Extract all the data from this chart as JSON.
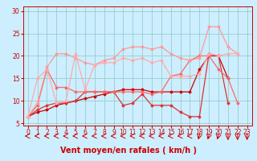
{
  "background_color": "#cceeff",
  "grid_color": "#99cccc",
  "xlabel": "Vent moyen/en rafales ( km/h )",
  "xlabel_color": "#cc0000",
  "xlabel_fontsize": 7,
  "tick_color": "#cc0000",
  "tick_fontsize": 5.5,
  "yticks": [
    5,
    10,
    15,
    20,
    25,
    30
  ],
  "xlim": [
    -0.5,
    23.5
  ],
  "ylim": [
    4.5,
    31
  ],
  "lines": [
    {
      "x": [
        0,
        1,
        2,
        3,
        4,
        5,
        6,
        7,
        8,
        9,
        10,
        11,
        12,
        13,
        14,
        15,
        16,
        17,
        18,
        19,
        20,
        21
      ],
      "y": [
        6.5,
        7.5,
        8.0,
        9.0,
        9.5,
        10.0,
        10.5,
        11.0,
        11.5,
        12.0,
        12.5,
        12.5,
        12.5,
        12.0,
        12.0,
        12.0,
        12.0,
        12.0,
        17.0,
        20.0,
        20.0,
        15.0
      ],
      "color": "#cc0000",
      "lw": 0.9,
      "marker": "D",
      "ms": 1.5
    },
    {
      "x": [
        0,
        1,
        2,
        3,
        4,
        5,
        6,
        7,
        8,
        9,
        10,
        11,
        12,
        13,
        14,
        15,
        16,
        17,
        18,
        19,
        20,
        21
      ],
      "y": [
        6.5,
        8.0,
        9.0,
        9.5,
        9.5,
        10.0,
        12.0,
        12.0,
        12.0,
        12.0,
        9.0,
        9.5,
        11.5,
        9.0,
        9.0,
        9.0,
        7.5,
        6.5,
        6.5,
        20.5,
        20.0,
        9.5
      ],
      "color": "#dd3333",
      "lw": 0.9,
      "marker": "D",
      "ms": 1.5
    },
    {
      "x": [
        0,
        1,
        2,
        3,
        4,
        5,
        6,
        7,
        8,
        9,
        10,
        11,
        12,
        13,
        14,
        15,
        16,
        17,
        18,
        19,
        20,
        21,
        22
      ],
      "y": [
        6.5,
        9.0,
        17.0,
        13.0,
        13.0,
        12.0,
        12.0,
        12.0,
        12.0,
        12.0,
        12.0,
        12.0,
        12.0,
        11.5,
        12.0,
        15.5,
        16.0,
        19.0,
        20.0,
        20.0,
        17.0,
        15.0,
        9.5
      ],
      "color": "#ff6666",
      "lw": 0.9,
      "marker": "D",
      "ms": 1.5
    },
    {
      "x": [
        0,
        1,
        2,
        3,
        4,
        5,
        6,
        7,
        8,
        9,
        10,
        11,
        12,
        13,
        14,
        15,
        16,
        17,
        18,
        19,
        20,
        21,
        22
      ],
      "y": [
        6.5,
        9.5,
        17.5,
        20.5,
        20.5,
        19.5,
        18.5,
        18.0,
        19.0,
        19.5,
        21.5,
        22.0,
        22.0,
        21.5,
        22.0,
        20.5,
        19.5,
        19.0,
        19.5,
        26.5,
        26.5,
        22.0,
        20.5
      ],
      "color": "#ff9999",
      "lw": 0.9,
      "marker": "D",
      "ms": 1.5
    },
    {
      "x": [
        0,
        1,
        2,
        3,
        4,
        5,
        6,
        7,
        8,
        9,
        10,
        11,
        12,
        13,
        14,
        15,
        16,
        17,
        18,
        19,
        20,
        21,
        22
      ],
      "y": [
        6.5,
        15.0,
        17.0,
        9.5,
        10.0,
        20.5,
        12.5,
        18.0,
        18.5,
        18.5,
        19.5,
        19.0,
        19.5,
        18.5,
        19.0,
        15.5,
        15.5,
        15.5,
        16.0,
        20.5,
        20.0,
        20.5,
        20.5
      ],
      "color": "#ffaaaa",
      "lw": 0.9,
      "marker": "D",
      "ms": 1.5
    }
  ]
}
